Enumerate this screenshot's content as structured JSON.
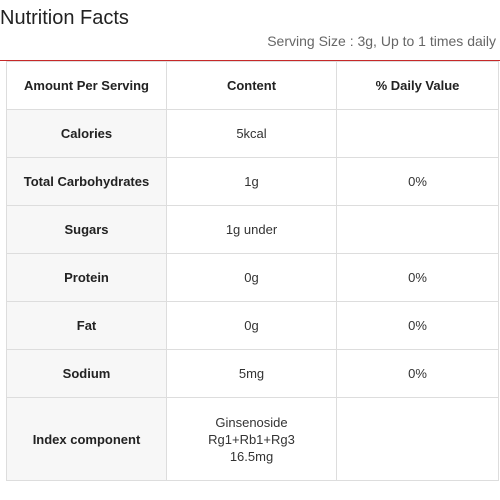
{
  "header": {
    "title": "Nutrition Facts",
    "serving": "Serving Size : 3g, Up to 1 times daily"
  },
  "table": {
    "columns": [
      "Amount Per Serving",
      "Content",
      "% Daily Value"
    ],
    "rows": [
      {
        "label": "Calories",
        "content": "5kcal",
        "daily_value": ""
      },
      {
        "label": "Total Carbohydrates",
        "content": "1g",
        "daily_value": "0%"
      },
      {
        "label": "Sugars",
        "content": "1g under",
        "daily_value": ""
      },
      {
        "label": "Protein",
        "content": "0g",
        "daily_value": "0%"
      },
      {
        "label": "Fat",
        "content": "0g",
        "daily_value": "0%"
      },
      {
        "label": "Sodium",
        "content": "5mg",
        "daily_value": "0%"
      },
      {
        "label": "Index component",
        "content_lines": [
          "Ginsenoside",
          "Rg1+Rb1+Rg3",
          "16.5mg"
        ],
        "daily_value": ""
      }
    ]
  },
  "colors": {
    "accent_rule": "#c62828",
    "border": "#dddddd",
    "label_bg": "#f7f7f7"
  }
}
